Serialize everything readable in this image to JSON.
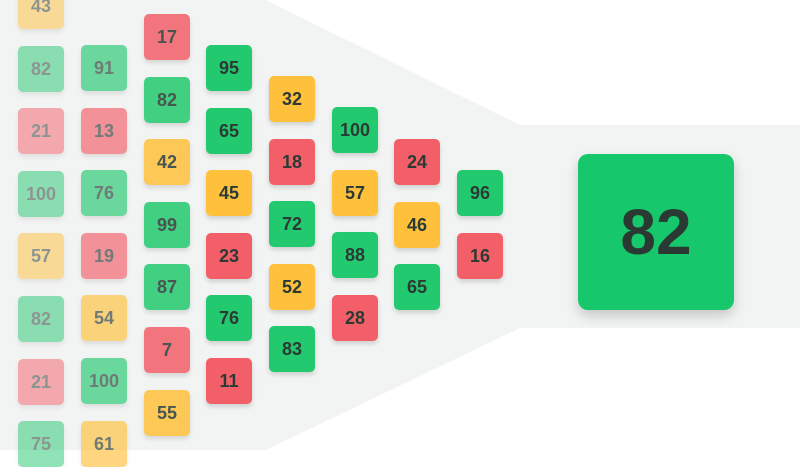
{
  "columns": [
    [
      "43",
      "82",
      "21",
      "100",
      "57",
      "82",
      "21",
      "75"
    ],
    [
      "91",
      "13",
      "76",
      "19",
      "54",
      "100",
      "61"
    ],
    [
      "17",
      "82",
      "42",
      "99",
      "87",
      "7",
      "55"
    ],
    [
      "95",
      "65",
      "45",
      "23",
      "76",
      "11"
    ],
    [
      "32",
      "18",
      "72",
      "52",
      "83"
    ],
    [
      "100",
      "57",
      "88",
      "28"
    ],
    [
      "24",
      "46",
      "65"
    ],
    [
      "96",
      "16"
    ]
  ],
  "column_colors": [
    [
      "yellow",
      "green",
      "red",
      "green",
      "yellow",
      "green",
      "red",
      "green"
    ],
    [
      "green",
      "red",
      "green",
      "red",
      "yellow",
      "green",
      "yellow"
    ],
    [
      "red",
      "green",
      "yellow",
      "green",
      "green",
      "red",
      "yellow"
    ],
    [
      "green",
      "green",
      "yellow",
      "red",
      "green",
      "red"
    ],
    [
      "yellow",
      "red",
      "green",
      "yellow",
      "green"
    ],
    [
      "green",
      "yellow",
      "green",
      "red"
    ],
    [
      "red",
      "yellow",
      "green"
    ],
    [
      "green",
      "red"
    ]
  ],
  "result": {
    "value": "82",
    "color": "green"
  },
  "palette": {
    "green": "#23c96f",
    "yellow": "#ffc13b",
    "red": "#f35f68",
    "funnel": "#f2f3f3"
  }
}
